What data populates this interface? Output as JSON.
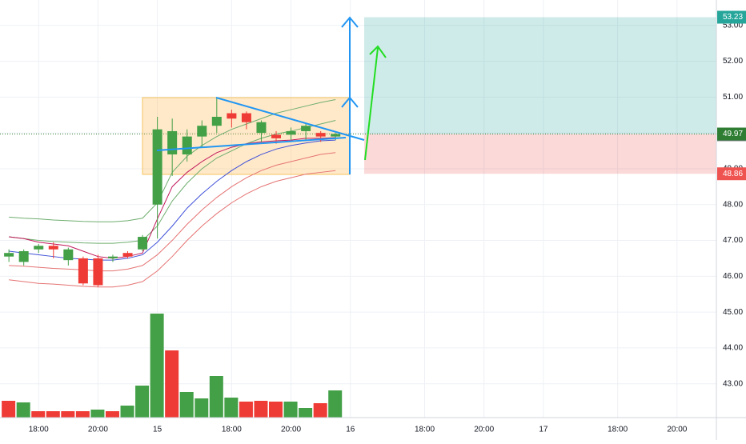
{
  "chart_data": {
    "type": "candlestick",
    "xlim": [
      -0.6,
      47.65
    ],
    "xticks": [
      {
        "value": 2,
        "label": "18:00"
      },
      {
        "value": 6,
        "label": "20:00"
      },
      {
        "value": 10,
        "label": "15"
      },
      {
        "value": 15,
        "label": "18:00"
      },
      {
        "value": 19,
        "label": "20:00"
      },
      {
        "value": 23,
        "label": "16"
      },
      {
        "value": 28,
        "label": "18:00"
      },
      {
        "value": 32,
        "label": "20:00"
      },
      {
        "value": 36,
        "label": "17"
      },
      {
        "value": 41,
        "label": "18:00"
      },
      {
        "value": 45,
        "label": "20:00"
      }
    ],
    "ylim": [
      42.1,
      53.71
    ],
    "yticks": [
      {
        "value": 43,
        "label": "43.00"
      },
      {
        "value": 44,
        "label": "44.00"
      },
      {
        "value": 45,
        "label": "45.00"
      },
      {
        "value": 46,
        "label": "46.00"
      },
      {
        "value": 47,
        "label": "47.00"
      },
      {
        "value": 48,
        "label": "48.00"
      },
      {
        "value": 49,
        "label": "49.00"
      },
      {
        "value": 50,
        "label": "50.00"
      },
      {
        "value": 51,
        "label": "51.00"
      },
      {
        "value": 52,
        "label": "52.00"
      },
      {
        "value": 53,
        "label": "53.00"
      }
    ],
    "grid": true,
    "up_color": "#43a047",
    "down_color": "#ef3b36",
    "open": [
      46.55,
      46.4,
      46.75,
      46.85,
      46.45,
      46.5,
      46.5,
      46.5,
      46.65,
      46.75,
      48.0,
      49.4,
      49.4,
      49.9,
      50.2,
      50.55,
      50.55,
      50.0,
      49.95,
      49.95,
      50.05,
      50.0,
      49.9
    ],
    "high": [
      46.75,
      46.75,
      46.9,
      46.95,
      46.8,
      46.55,
      46.6,
      46.6,
      46.7,
      47.15,
      50.45,
      50.4,
      50.1,
      50.35,
      51.0,
      50.65,
      50.6,
      50.35,
      50.05,
      50.15,
      50.25,
      50.05,
      50.0
    ],
    "low": [
      46.4,
      46.3,
      46.65,
      46.5,
      46.3,
      45.75,
      45.7,
      46.4,
      46.5,
      46.7,
      47.05,
      48.8,
      49.2,
      49.6,
      50.0,
      50.15,
      50.1,
      49.75,
      49.7,
      49.8,
      49.8,
      49.75,
      49.8
    ],
    "close": [
      46.65,
      46.7,
      46.85,
      46.75,
      46.75,
      45.8,
      45.75,
      46.55,
      46.55,
      47.1,
      50.1,
      50.05,
      49.9,
      50.2,
      50.45,
      50.4,
      50.3,
      50.3,
      49.85,
      50.05,
      50.2,
      49.9,
      49.97
    ],
    "volume": [
      21,
      19,
      8,
      8,
      8,
      8,
      10,
      8,
      15,
      40,
      130,
      84,
      32,
      24,
      52,
      25,
      20,
      21,
      20,
      20,
      12,
      18,
      34
    ],
    "vlim": [
      0,
      520
    ],
    "volume_colors": [
      "#ef3b36",
      "#43a047",
      "#ef3b36",
      "#ef3b36",
      "#ef3b36",
      "#ef3b36",
      "#43a047",
      "#ef3b36",
      "#43a047",
      "#43a047",
      "#43a047",
      "#ef3b36",
      "#43a047",
      "#43a047",
      "#43a047",
      "#43a047",
      "#ef3b36",
      "#ef3b36",
      "#ef3b36",
      "#43a047",
      "#43a047",
      "#ef3b36",
      "#43a047"
    ],
    "lines": [
      {
        "color": "#6fae6f",
        "values": [
          47.65,
          47.62,
          47.6,
          47.57,
          47.55,
          47.53,
          47.52,
          47.52,
          47.55,
          47.62,
          48.05,
          48.9,
          49.35,
          49.65,
          49.9,
          50.1,
          50.25,
          50.4,
          50.55,
          50.65,
          50.75,
          50.85,
          50.93
        ]
      },
      {
        "color": "#6fae6f",
        "values": [
          47.1,
          47.05,
          47.0,
          46.97,
          46.95,
          46.93,
          46.92,
          46.92,
          46.95,
          47.0,
          47.4,
          48.1,
          48.6,
          49.0,
          49.3,
          49.5,
          49.7,
          49.85,
          49.97,
          50.05,
          50.15,
          50.25,
          50.35
        ]
      },
      {
        "color": "#c2185b",
        "values": [
          47.1,
          47.05,
          46.95,
          46.9,
          46.85,
          46.7,
          46.55,
          46.5,
          46.55,
          46.65,
          47.6,
          48.5,
          48.9,
          49.2,
          49.45,
          49.6,
          49.7,
          49.75,
          49.78,
          49.8,
          49.85,
          49.85,
          49.87
        ]
      },
      {
        "color": "#3f51d8",
        "values": [
          46.7,
          46.65,
          46.6,
          46.55,
          46.5,
          46.48,
          46.45,
          46.45,
          46.5,
          46.6,
          46.95,
          47.4,
          47.9,
          48.3,
          48.65,
          48.95,
          49.2,
          49.4,
          49.55,
          49.65,
          49.72,
          49.78,
          49.8
        ]
      },
      {
        "color": "#e57373",
        "values": [
          46.3,
          46.28,
          46.25,
          46.22,
          46.2,
          46.18,
          46.15,
          46.15,
          46.2,
          46.3,
          46.6,
          47.0,
          47.45,
          47.85,
          48.2,
          48.5,
          48.75,
          48.95,
          49.1,
          49.2,
          49.3,
          49.4,
          49.45
        ]
      },
      {
        "color": "#e57373",
        "values": [
          45.9,
          45.85,
          45.8,
          45.78,
          45.75,
          45.72,
          45.7,
          45.7,
          45.75,
          45.85,
          46.15,
          46.55,
          47.0,
          47.4,
          47.75,
          48.05,
          48.3,
          48.5,
          48.65,
          48.75,
          48.85,
          48.9,
          48.95
        ]
      }
    ],
    "position": {
      "target": 53.23,
      "target_color": "#26a69a",
      "entry": 49.97,
      "entry_color": "#2e7d32",
      "stop": 48.86,
      "stop_color": "#ef5350"
    },
    "last_price": 49.95,
    "last_price_color": "#787b86"
  }
}
